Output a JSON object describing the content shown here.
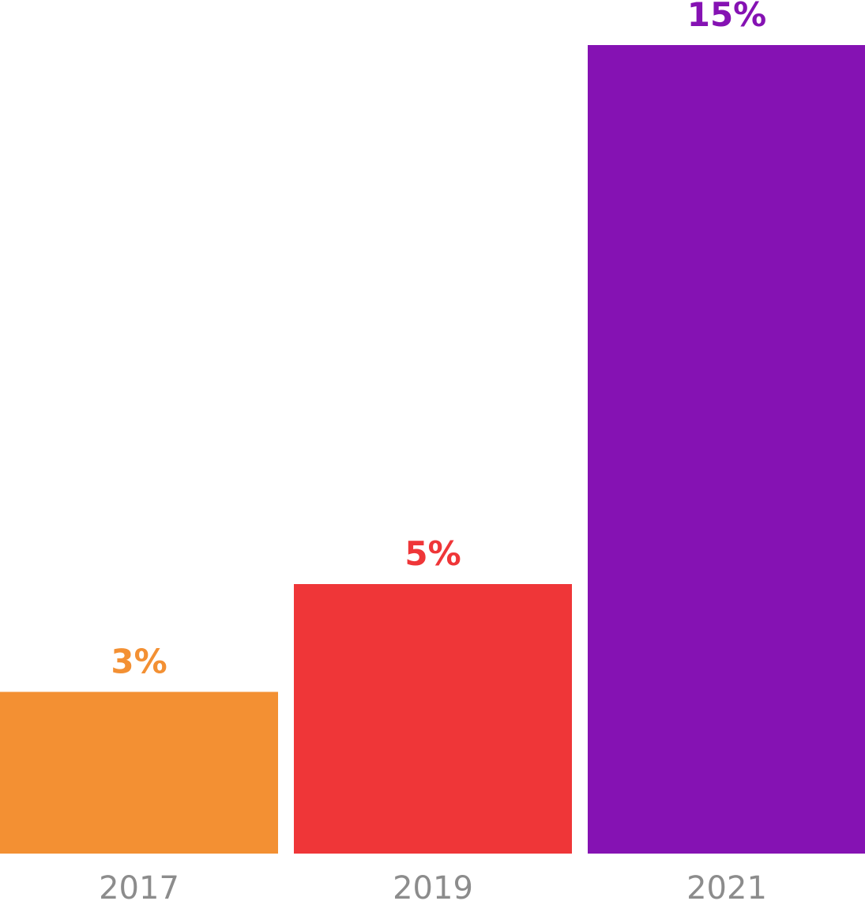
{
  "chart_data": {
    "type": "bar",
    "categories": [
      "2017",
      "2019",
      "2021"
    ],
    "values": [
      3,
      5,
      15
    ],
    "value_labels": [
      "3%",
      "5%",
      "15%"
    ],
    "colors": [
      "#f39033",
      "#ef3638",
      "#8512b3"
    ],
    "category_label_color": "#8c8c8c",
    "ylim": [
      0,
      15
    ],
    "grid": false,
    "legend": "none"
  }
}
